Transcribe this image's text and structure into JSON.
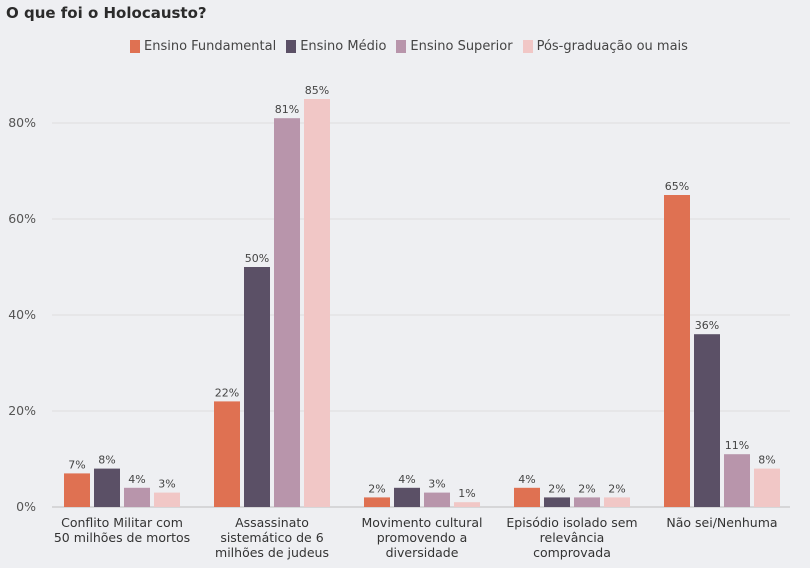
{
  "chart_data": {
    "type": "bar",
    "title": "O que foi o Holocausto?",
    "categories": [
      "Conflito Militar com 50 milhões de mortos",
      "Assassinato sistemático de 6 milhões de judeus",
      "Movimento cultural promovendo a diversidade",
      "Episódio isolado sem relevância comprovada",
      "Não sei/Nenhuma"
    ],
    "series": [
      {
        "name": "Ensino Fundamental",
        "color": "#df7152",
        "values": [
          7,
          22,
          2,
          4,
          65
        ]
      },
      {
        "name": "Ensino Médio",
        "color": "#5b5066",
        "values": [
          8,
          50,
          4,
          2,
          36
        ]
      },
      {
        "name": "Ensino Superior",
        "color": "#b895ab",
        "values": [
          4,
          81,
          3,
          2,
          11
        ]
      },
      {
        "name": "Pós-graduação ou mais",
        "color": "#f1c7c6",
        "values": [
          3,
          85,
          1,
          2,
          8
        ]
      }
    ],
    "yticks": [
      0,
      20,
      40,
      60,
      80
    ],
    "ylim": [
      0,
      90
    ],
    "y_unit": "%",
    "grid": true,
    "legend": "top"
  }
}
